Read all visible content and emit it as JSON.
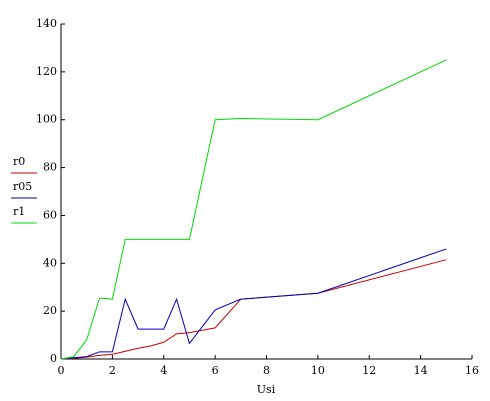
{
  "chart_data": {
    "type": "line",
    "xlabel": "Usi",
    "x": [
      0,
      0.5,
      1,
      1.5,
      2,
      2.5,
      3,
      3.5,
      4,
      4.5,
      5,
      6,
      7,
      10,
      15
    ],
    "series": [
      {
        "name": "r0",
        "color": "#cc0000",
        "values": [
          0,
          0.3,
          0.8,
          1.5,
          2,
          3.2,
          4.5,
          5.5,
          7,
          10.5,
          11,
          13,
          25,
          27.5,
          41.5
        ]
      },
      {
        "name": "r05",
        "color": "#0000bb",
        "values": [
          0,
          0.5,
          1,
          3,
          3,
          25,
          12.5,
          12.5,
          12.5,
          25,
          6.5,
          20.5,
          25,
          27.5,
          46
        ]
      },
      {
        "name": "r1",
        "color": "#00dd00",
        "values": [
          0,
          1,
          8,
          25.5,
          25,
          50,
          50,
          50,
          50,
          50,
          50,
          100,
          100.5,
          100,
          125
        ]
      }
    ],
    "xlim": [
      0,
      16
    ],
    "xticks": [
      0,
      2,
      4,
      6,
      8,
      10,
      12,
      14,
      16
    ],
    "ylim": [
      0,
      140
    ],
    "yticks": [
      0,
      20,
      40,
      60,
      80,
      100,
      120,
      140
    ],
    "legend": "left"
  }
}
